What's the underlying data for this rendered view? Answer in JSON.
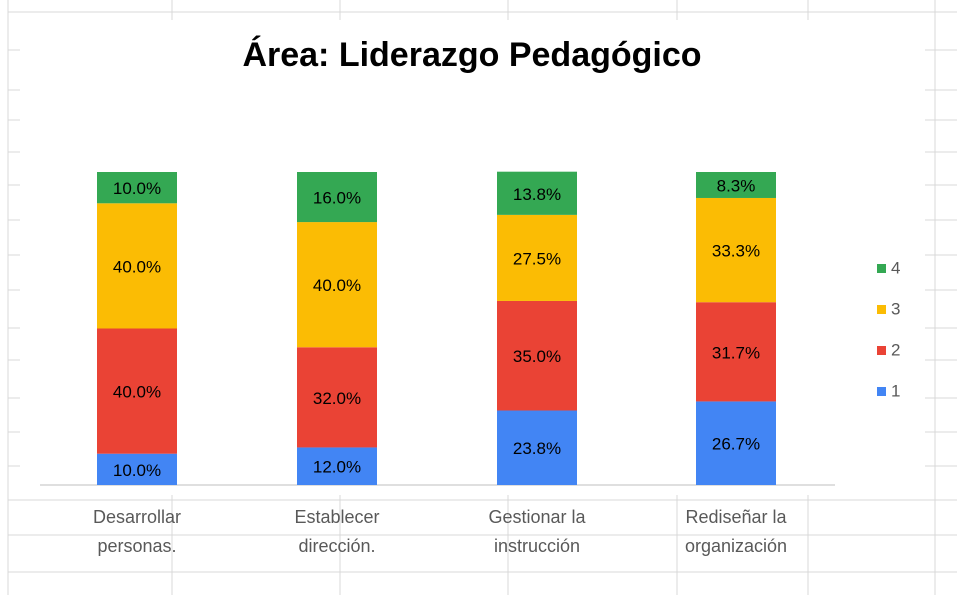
{
  "chart_data": {
    "type": "stacked_bar",
    "title": "Área: Liderazgo Pedagógico",
    "categories": [
      "Desarrollar personas.",
      "Establecer dirección.",
      "Gestionar la instrucción",
      "Rediseñar la organización"
    ],
    "series": [
      {
        "name": "1",
        "color": "#4285f4",
        "values": [
          10,
          12,
          23.8,
          26.7
        ],
        "value_labels": [
          "10.0%",
          "12.0%",
          "23.8%",
          "26.7%"
        ]
      },
      {
        "name": "2",
        "color": "#ea4335",
        "values": [
          40,
          32,
          35,
          31.7
        ],
        "value_labels": [
          "40.0%",
          "32.0%",
          "35.0%",
          "31.7%"
        ]
      },
      {
        "name": "3",
        "color": "#fbbc04",
        "values": [
          40,
          40,
          27.5,
          33.3
        ],
        "value_labels": [
          "40.0%",
          "40.0%",
          "27.5%",
          "33.3%"
        ]
      },
      {
        "name": "4",
        "color": "#34a853",
        "values": [
          10,
          16,
          13.8,
          8.3
        ],
        "value_labels": [
          "10.0%",
          "16.0%",
          "13.8%",
          "8.3%"
        ]
      }
    ],
    "ylim": [
      0,
      100
    ],
    "legend": "right"
  }
}
